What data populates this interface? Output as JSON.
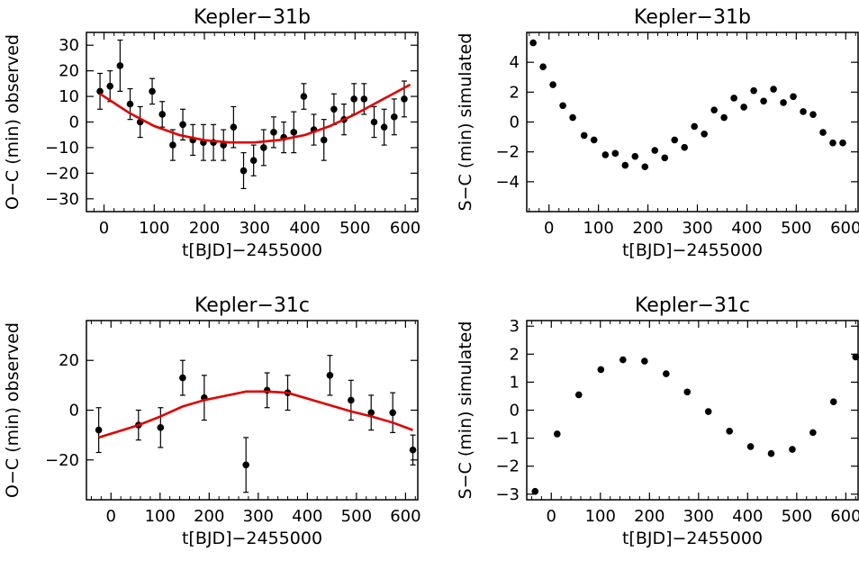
{
  "figure": {
    "background": "#ffffff",
    "axis_color": "#000000",
    "point_color": "#000000",
    "model_color": "#e00000"
  },
  "chart_data": [
    {
      "id": "k31b-observed",
      "type": "scatter",
      "title": "Kepler−31b",
      "xlabel": "t[BJD]−2455000",
      "ylabel": "O−C (min) observed",
      "xlim": [
        -35,
        625
      ],
      "ylim": [
        -35,
        35
      ],
      "xticks": [
        0,
        100,
        200,
        300,
        400,
        500,
        600
      ],
      "yticks": [
        30,
        20,
        10,
        0,
        -10,
        -20,
        -30
      ],
      "grid": false,
      "series": [
        {
          "kind": "points_with_errorbars",
          "x": [
            -8,
            12,
            32,
            52,
            72,
            96,
            116,
            137,
            157,
            177,
            198,
            218,
            238,
            258,
            278,
            298,
            318,
            338,
            358,
            378,
            398,
            418,
            438,
            458,
            478,
            498,
            518,
            538,
            558,
            578,
            598
          ],
          "y": [
            12,
            14,
            22,
            7,
            0,
            12,
            3,
            -9,
            -1,
            -7,
            -8,
            -8,
            -9,
            -2,
            -19,
            -15,
            -10,
            -4,
            -6,
            -4,
            10,
            -3,
            -7,
            5,
            1,
            9,
            9,
            0,
            -2,
            2,
            9
          ],
          "err": [
            7,
            6,
            10,
            6,
            6,
            5,
            5,
            6,
            6,
            6,
            7,
            7,
            6,
            8,
            7,
            6,
            7,
            6,
            6,
            8,
            5,
            6,
            8,
            6,
            6,
            6,
            6,
            6,
            7,
            7,
            7
          ]
        },
        {
          "kind": "model_line",
          "x": [
            -8,
            50,
            100,
            150,
            200,
            250,
            300,
            350,
            400,
            450,
            500,
            550,
            610
          ],
          "y": [
            11,
            3.6,
            -1.6,
            -5.1,
            -7.1,
            -8.0,
            -8.0,
            -7.0,
            -5.1,
            -1.6,
            3.0,
            8.3,
            14.6
          ]
        }
      ]
    },
    {
      "id": "k31b-simulated",
      "type": "scatter",
      "title": "Kepler−31b",
      "xlabel": "t[BJD]−2455000",
      "ylabel": "S−C (min) simulated",
      "xlim": [
        -45,
        625
      ],
      "ylim": [
        -6,
        6
      ],
      "xticks": [
        0,
        100,
        200,
        300,
        400,
        500,
        600
      ],
      "yticks": [
        4,
        2,
        0,
        -2,
        -4
      ],
      "grid": false,
      "series": [
        {
          "kind": "points",
          "x": [
            -32,
            -12,
            8,
            28,
            48,
            71,
            91,
            114,
            134,
            154,
            174,
            194,
            214,
            234,
            254,
            274,
            294,
            314,
            334,
            354,
            374,
            394,
            414,
            434,
            454,
            474,
            494,
            514,
            534,
            554,
            574,
            594
          ],
          "y": [
            5.3,
            3.7,
            2.5,
            1.1,
            0.3,
            -0.9,
            -1.2,
            -2.2,
            -2.1,
            -2.9,
            -2.3,
            -3.0,
            -1.9,
            -2.4,
            -1.2,
            -1.7,
            -0.3,
            -0.8,
            0.8,
            0.3,
            1.6,
            1.0,
            2.1,
            1.4,
            2.2,
            1.3,
            1.7,
            0.7,
            0.5,
            -0.7,
            -1.4,
            -1.4
          ]
        }
      ]
    },
    {
      "id": "k31c-observed",
      "type": "scatter",
      "title": "Kepler−31c",
      "xlabel": "t[BJD]−2455000",
      "ylabel": "O−C (min) observed",
      "xlim": [
        -50,
        625
      ],
      "ylim": [
        -36,
        36
      ],
      "xticks": [
        0,
        100,
        200,
        300,
        400,
        500,
        600
      ],
      "yticks": [
        20,
        0,
        -20
      ],
      "grid": false,
      "series": [
        {
          "kind": "points_with_errorbars",
          "x": [
            -25,
            56,
            101,
            146,
            190,
            275,
            318,
            360,
            446,
            489,
            530,
            574,
            615
          ],
          "y": [
            -8,
            -6,
            -7,
            13,
            5,
            -22,
            8,
            7,
            14,
            4,
            -1,
            -1,
            -16
          ],
          "err": [
            9,
            6,
            8,
            7,
            9,
            11,
            7,
            7,
            8,
            8,
            7,
            8,
            6
          ]
        },
        {
          "kind": "model_line",
          "x": [
            -25,
            56,
            101,
            146,
            190,
            275,
            318,
            360,
            446,
            489,
            530,
            574,
            615
          ],
          "y": [
            -11,
            -6,
            -2.5,
            1.5,
            4,
            7.5,
            7.5,
            7,
            2,
            -0.5,
            -2.5,
            -5,
            -8
          ]
        }
      ]
    },
    {
      "id": "k31c-simulated",
      "type": "scatter",
      "title": "Kepler−31c",
      "xlabel": "t[BJD]−2455000",
      "ylabel": "S−C (min) simulated",
      "xlim": [
        -50,
        625
      ],
      "ylim": [
        -3.2,
        3.2
      ],
      "xticks": [
        0,
        100,
        200,
        300,
        400,
        500,
        600
      ],
      "yticks": [
        3,
        2,
        1,
        0,
        -1,
        -2,
        -3
      ],
      "grid": false,
      "series": [
        {
          "kind": "points",
          "x": [
            -33,
            12,
            56,
            101,
            146,
            190,
            234,
            277,
            320,
            363,
            406,
            448,
            491,
            533,
            575,
            620
          ],
          "y": [
            -2.9,
            -0.85,
            0.55,
            1.45,
            1.8,
            1.75,
            1.3,
            0.65,
            -0.05,
            -0.75,
            -1.3,
            -1.55,
            -1.4,
            -0.8,
            0.3,
            1.9
          ]
        }
      ]
    }
  ]
}
